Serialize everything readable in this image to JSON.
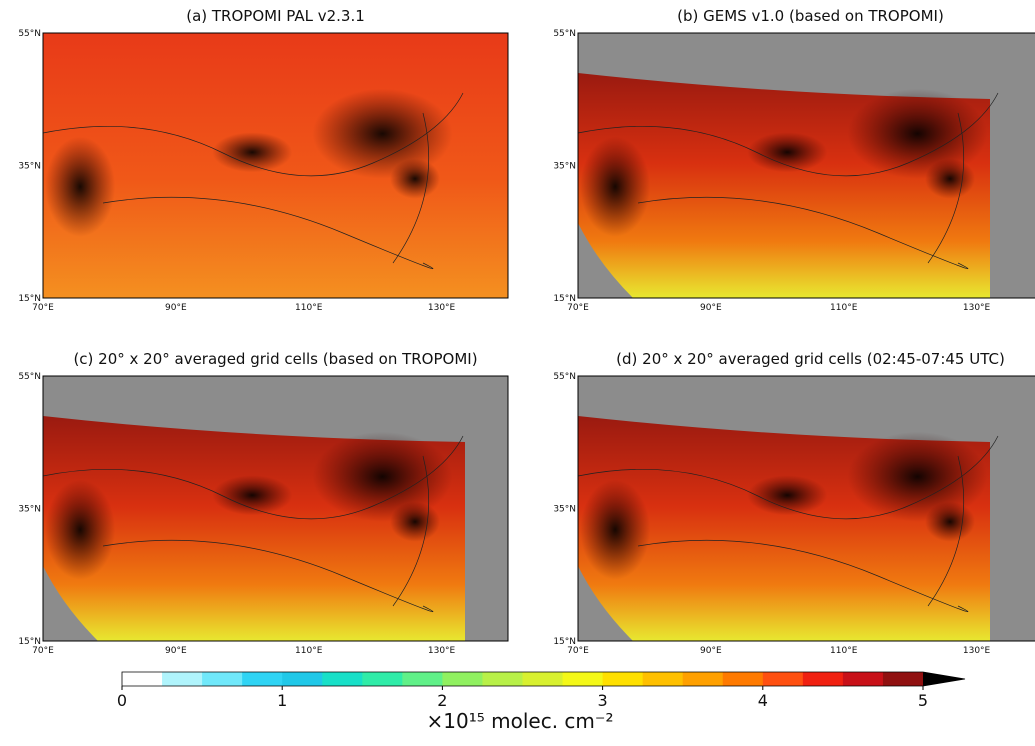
{
  "panels": [
    {
      "title": "(a) TROPOMI PAL v2.3.1"
    },
    {
      "title": "(b) GEMS v1.0 (based on TROPOMI)"
    },
    {
      "title": "(c) 20° x 20° averaged grid cells (based on TROPOMI)"
    },
    {
      "title": "(d) 20° x 20° averaged grid cells (02:45-07:45 UTC)"
    }
  ],
  "map_axes": {
    "lon_lim": [
      70,
      140
    ],
    "lat_lim": [
      15,
      55
    ],
    "lat_ticks": [
      {
        "value": 55,
        "label": "55°N"
      },
      {
        "value": 35,
        "label": "35°N"
      },
      {
        "value": 15,
        "label": "15°N"
      }
    ],
    "lon_ticks": [
      {
        "value": 70,
        "label": "70°E"
      },
      {
        "value": 90,
        "label": "90°E"
      },
      {
        "value": 110,
        "label": "110°E"
      },
      {
        "value": 130,
        "label": "130°E"
      }
    ]
  },
  "colorbar": {
    "lim": [
      0,
      5
    ],
    "ticks": [
      0,
      1,
      2,
      3,
      4,
      5
    ],
    "label": "×10¹⁵ molec. cm⁻²",
    "colors": [
      "#ffffff",
      "#b0f4fc",
      "#70e8fa",
      "#30d4f4",
      "#20c8e8",
      "#18e0c8",
      "#30eca8",
      "#60f088",
      "#90f060",
      "#b8f048",
      "#d8f030",
      "#f4f818",
      "#ffe000",
      "#ffc000",
      "#ffa000",
      "#ff7a00",
      "#ff5010",
      "#f02010",
      "#c81018",
      "#901010"
    ],
    "extend_color": "#000000"
  }
}
